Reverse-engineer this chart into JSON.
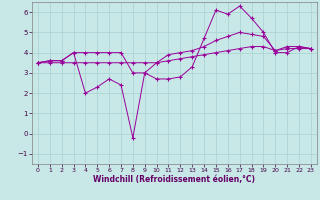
{
  "xlabel": "Windchill (Refroidissement éolien,°C)",
  "background_color": "#c8e8e8",
  "grid_color": "#a8d0d0",
  "line_color": "#990099",
  "xlim": [
    -0.5,
    23.5
  ],
  "ylim": [
    -1.5,
    6.5
  ],
  "yticks": [
    -1,
    0,
    1,
    2,
    3,
    4,
    5,
    6
  ],
  "xticks": [
    0,
    1,
    2,
    3,
    4,
    5,
    6,
    7,
    8,
    9,
    10,
    11,
    12,
    13,
    14,
    15,
    16,
    17,
    18,
    19,
    20,
    21,
    22,
    23
  ],
  "line1_x": [
    0,
    1,
    2,
    3,
    4,
    5,
    6,
    7,
    8,
    9,
    10,
    11,
    12,
    13,
    14,
    15,
    16,
    17,
    18,
    19,
    20,
    21,
    22,
    23
  ],
  "line1_y": [
    3.5,
    3.6,
    3.6,
    4.0,
    2.0,
    2.3,
    2.7,
    2.4,
    -0.2,
    3.0,
    2.7,
    2.7,
    2.8,
    3.3,
    4.7,
    6.1,
    5.9,
    6.3,
    5.7,
    5.0,
    4.0,
    4.0,
    4.3,
    4.2
  ],
  "line2_x": [
    0,
    1,
    2,
    3,
    4,
    5,
    6,
    7,
    8,
    9,
    10,
    11,
    12,
    13,
    14,
    15,
    16,
    17,
    18,
    19,
    20,
    21,
    22,
    23
  ],
  "line2_y": [
    3.5,
    3.6,
    3.6,
    4.0,
    4.0,
    4.0,
    4.0,
    4.0,
    3.0,
    3.0,
    3.5,
    3.9,
    4.0,
    4.1,
    4.3,
    4.6,
    4.8,
    5.0,
    4.9,
    4.8,
    4.1,
    4.3,
    4.3,
    4.2
  ],
  "line3_x": [
    0,
    1,
    2,
    3,
    4,
    5,
    6,
    7,
    8,
    9,
    10,
    11,
    12,
    13,
    14,
    15,
    16,
    17,
    18,
    19,
    20,
    21,
    22,
    23
  ],
  "line3_y": [
    3.5,
    3.5,
    3.5,
    3.5,
    3.5,
    3.5,
    3.5,
    3.5,
    3.5,
    3.5,
    3.5,
    3.6,
    3.7,
    3.8,
    3.9,
    4.0,
    4.1,
    4.2,
    4.3,
    4.3,
    4.1,
    4.2,
    4.2,
    4.2
  ]
}
